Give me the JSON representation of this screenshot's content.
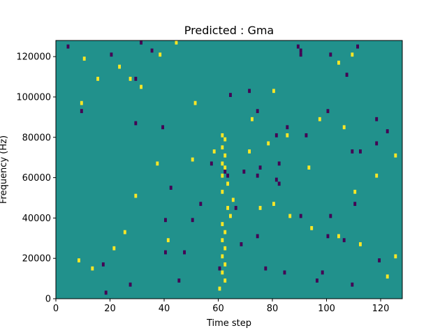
{
  "chart_data": {
    "type": "heatmap",
    "title": "Predicted : Gma",
    "xlabel": "Time step",
    "ylabel": "Frequency (Hz)",
    "xlim": [
      0,
      128
    ],
    "ylim": [
      0,
      128000
    ],
    "x_ticks": [
      0,
      20,
      40,
      60,
      80,
      100,
      120
    ],
    "y_ticks": [
      0,
      20000,
      40000,
      60000,
      80000,
      100000,
      120000
    ],
    "grid": false,
    "colors": {
      "background": "#21918c",
      "low": "#440154",
      "high": "#fde725"
    },
    "low_cells": [
      [
        4,
        124000
      ],
      [
        20,
        120000
      ],
      [
        35,
        122000
      ],
      [
        89,
        124000
      ],
      [
        90,
        122000
      ],
      [
        90,
        120000
      ],
      [
        101,
        120000
      ],
      [
        111,
        124000
      ],
      [
        107,
        110000
      ],
      [
        29,
        108000
      ],
      [
        9,
        92000
      ],
      [
        100,
        92000
      ],
      [
        118,
        88000
      ],
      [
        122,
        82000
      ],
      [
        39,
        84000
      ],
      [
        81,
        80000
      ],
      [
        92,
        80000
      ],
      [
        57,
        66000
      ],
      [
        62,
        62000
      ],
      [
        63,
        60000
      ],
      [
        69,
        62000
      ],
      [
        74,
        60000
      ],
      [
        81,
        58000
      ],
      [
        82,
        56000
      ],
      [
        42,
        54000
      ],
      [
        53,
        46000
      ],
      [
        66,
        44000
      ],
      [
        101,
        40000
      ],
      [
        40,
        38000
      ],
      [
        50,
        38000
      ],
      [
        110,
        46000
      ],
      [
        90,
        40000
      ],
      [
        100,
        30000
      ],
      [
        74,
        30000
      ],
      [
        68,
        26000
      ],
      [
        47,
        22000
      ],
      [
        40,
        22000
      ],
      [
        17,
        16000
      ],
      [
        60,
        14000
      ],
      [
        77,
        14000
      ],
      [
        84,
        12000
      ],
      [
        98,
        12000
      ],
      [
        106,
        28000
      ],
      [
        119,
        18000
      ],
      [
        45,
        8000
      ],
      [
        96,
        8000
      ],
      [
        109,
        6000
      ],
      [
        27,
        6000
      ],
      [
        18,
        2000
      ],
      [
        75,
        64000
      ],
      [
        82,
        66000
      ],
      [
        112,
        72000
      ],
      [
        118,
        76000
      ],
      [
        85,
        84000
      ],
      [
        31,
        126000
      ],
      [
        74,
        92000
      ],
      [
        109,
        72000
      ],
      [
        64,
        100000
      ],
      [
        71,
        102000
      ],
      [
        29,
        86000
      ]
    ],
    "high_cells": [
      [
        44,
        126000
      ],
      [
        10,
        118000
      ],
      [
        23,
        114000
      ],
      [
        38,
        120000
      ],
      [
        104,
        116000
      ],
      [
        109,
        120000
      ],
      [
        31,
        104000
      ],
      [
        27,
        108000
      ],
      [
        15,
        108000
      ],
      [
        9,
        96000
      ],
      [
        51,
        96000
      ],
      [
        80,
        102000
      ],
      [
        61,
        80000
      ],
      [
        62,
        78000
      ],
      [
        61,
        74000
      ],
      [
        62,
        70000
      ],
      [
        61,
        66000
      ],
      [
        62,
        64000
      ],
      [
        61,
        60000
      ],
      [
        63,
        56000
      ],
      [
        61,
        52000
      ],
      [
        65,
        48000
      ],
      [
        63,
        44000
      ],
      [
        64,
        40000
      ],
      [
        61,
        36000
      ],
      [
        62,
        32000
      ],
      [
        61,
        28000
      ],
      [
        62,
        24000
      ],
      [
        61,
        20000
      ],
      [
        62,
        16000
      ],
      [
        61,
        12000
      ],
      [
        62,
        8000
      ],
      [
        60,
        4000
      ],
      [
        75,
        44000
      ],
      [
        80,
        46000
      ],
      [
        86,
        40000
      ],
      [
        94,
        34000
      ],
      [
        104,
        30000
      ],
      [
        112,
        26000
      ],
      [
        125,
        20000
      ],
      [
        122,
        10000
      ],
      [
        8,
        18000
      ],
      [
        13,
        14000
      ],
      [
        21,
        24000
      ],
      [
        25,
        32000
      ],
      [
        41,
        28000
      ],
      [
        29,
        50000
      ],
      [
        37,
        66000
      ],
      [
        50,
        68000
      ],
      [
        58,
        72000
      ],
      [
        78,
        76000
      ],
      [
        85,
        80000
      ],
      [
        97,
        88000
      ],
      [
        106,
        84000
      ],
      [
        118,
        60000
      ],
      [
        110,
        52000
      ],
      [
        93,
        64000
      ],
      [
        125,
        70000
      ],
      [
        72,
        88000
      ],
      [
        71,
        72000
      ]
    ]
  }
}
